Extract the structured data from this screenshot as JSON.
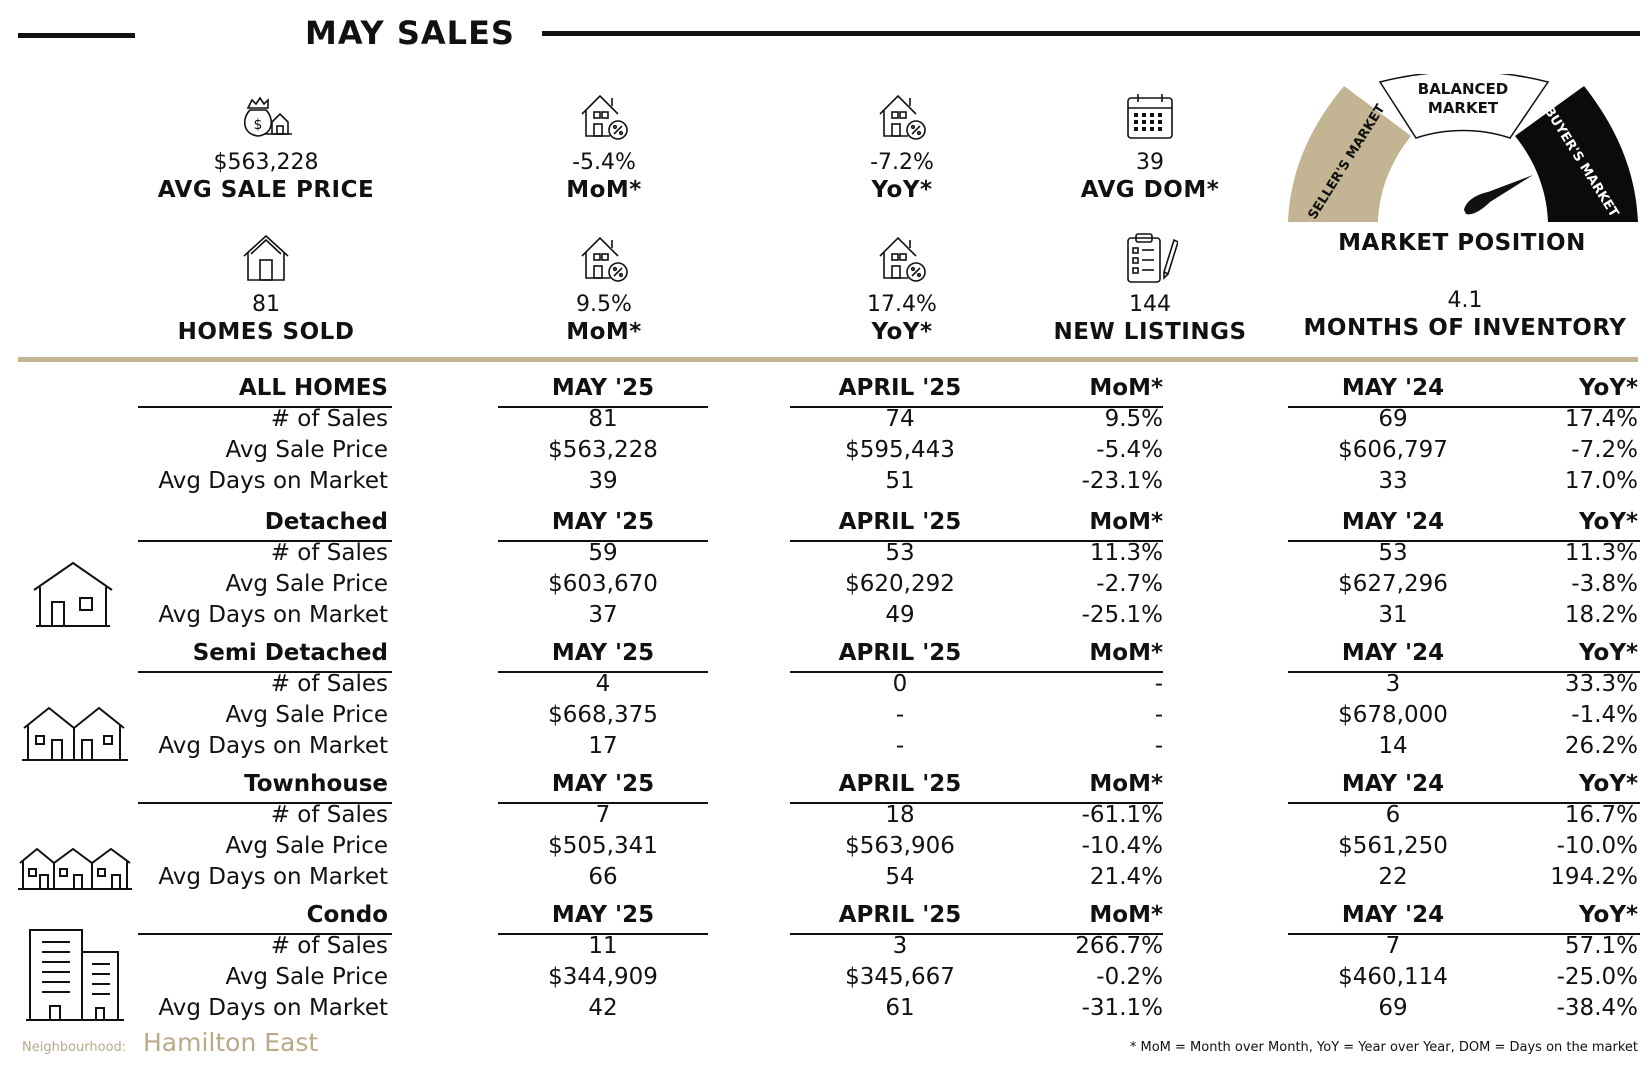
{
  "header": {
    "title": "MAY SALES"
  },
  "kpis": {
    "avg_sale_price": {
      "value": "$563,228",
      "label": "AVG SALE PRICE"
    },
    "price_mom": {
      "value": "-5.4%",
      "label": "MoM*"
    },
    "price_yoy": {
      "value": "-7.2%",
      "label": "YoY*"
    },
    "avg_dom": {
      "value": "39",
      "label": "AVG DOM*"
    },
    "homes_sold": {
      "value": "81",
      "label": "HOMES SOLD"
    },
    "sold_mom": {
      "value": "9.5%",
      "label": "MoM*"
    },
    "sold_yoy": {
      "value": "17.4%",
      "label": "YoY*"
    },
    "new_listings": {
      "value": "144",
      "label": "NEW LISTINGS"
    },
    "months_inventory": {
      "value": "4.1",
      "label": "MONTHS OF INVENTORY"
    }
  },
  "gauge": {
    "seller": "SELLER'S MARKET",
    "balanced_1": "BALANCED",
    "balanced_2": "MARKET",
    "buyer": "BUYER'S MARKET",
    "caption": "MARKET POSITION",
    "colors": {
      "seller": "#c3b594",
      "balanced": "#ffffff",
      "buyer": "#0b0b0b"
    }
  },
  "table": {
    "col_headers": {
      "current": "MAY '25",
      "prev": "APRIL '25",
      "mom": "MoM*",
      "last_year": "MAY '24",
      "yoy": "YoY*"
    },
    "row_labels": {
      "sales": "# of Sales",
      "price": "Avg Sale Price",
      "dom": "Avg Days on Market"
    },
    "sections": [
      {
        "name": "ALL HOMES",
        "rows": [
          [
            "81",
            "74",
            "9.5%",
            "69",
            "17.4%"
          ],
          [
            "$563,228",
            "$595,443",
            "-5.4%",
            "$606,797",
            "-7.2%"
          ],
          [
            "39",
            "51",
            "-23.1%",
            "33",
            "17.0%"
          ]
        ]
      },
      {
        "name": "Detached",
        "rows": [
          [
            "59",
            "53",
            "11.3%",
            "53",
            "11.3%"
          ],
          [
            "$603,670",
            "$620,292",
            "-2.7%",
            "$627,296",
            "-3.8%"
          ],
          [
            "37",
            "49",
            "-25.1%",
            "31",
            "18.2%"
          ]
        ]
      },
      {
        "name": "Semi Detached",
        "rows": [
          [
            "4",
            "0",
            "-",
            "3",
            "33.3%"
          ],
          [
            "$668,375",
            "-",
            "-",
            "$678,000",
            "-1.4%"
          ],
          [
            "17",
            "-",
            "-",
            "14",
            "26.2%"
          ]
        ]
      },
      {
        "name": "Townhouse",
        "rows": [
          [
            "7",
            "18",
            "-61.1%",
            "6",
            "16.7%"
          ],
          [
            "$505,341",
            "$563,906",
            "-10.4%",
            "$561,250",
            "-10.0%"
          ],
          [
            "66",
            "54",
            "21.4%",
            "22",
            "194.2%"
          ]
        ]
      },
      {
        "name": "Condo",
        "rows": [
          [
            "11",
            "3",
            "266.7%",
            "7",
            "57.1%"
          ],
          [
            "$344,909",
            "$345,667",
            "-0.2%",
            "$460,114",
            "-25.0%"
          ],
          [
            "42",
            "61",
            "-31.1%",
            "69",
            "-38.4%"
          ]
        ]
      }
    ]
  },
  "footer": {
    "neighbourhood_label": "Neighbourhood:",
    "neighbourhood": "Hamilton East",
    "footnote": "* MoM = Month over Month, YoY = Year over Year, DOM = Days on the market"
  }
}
